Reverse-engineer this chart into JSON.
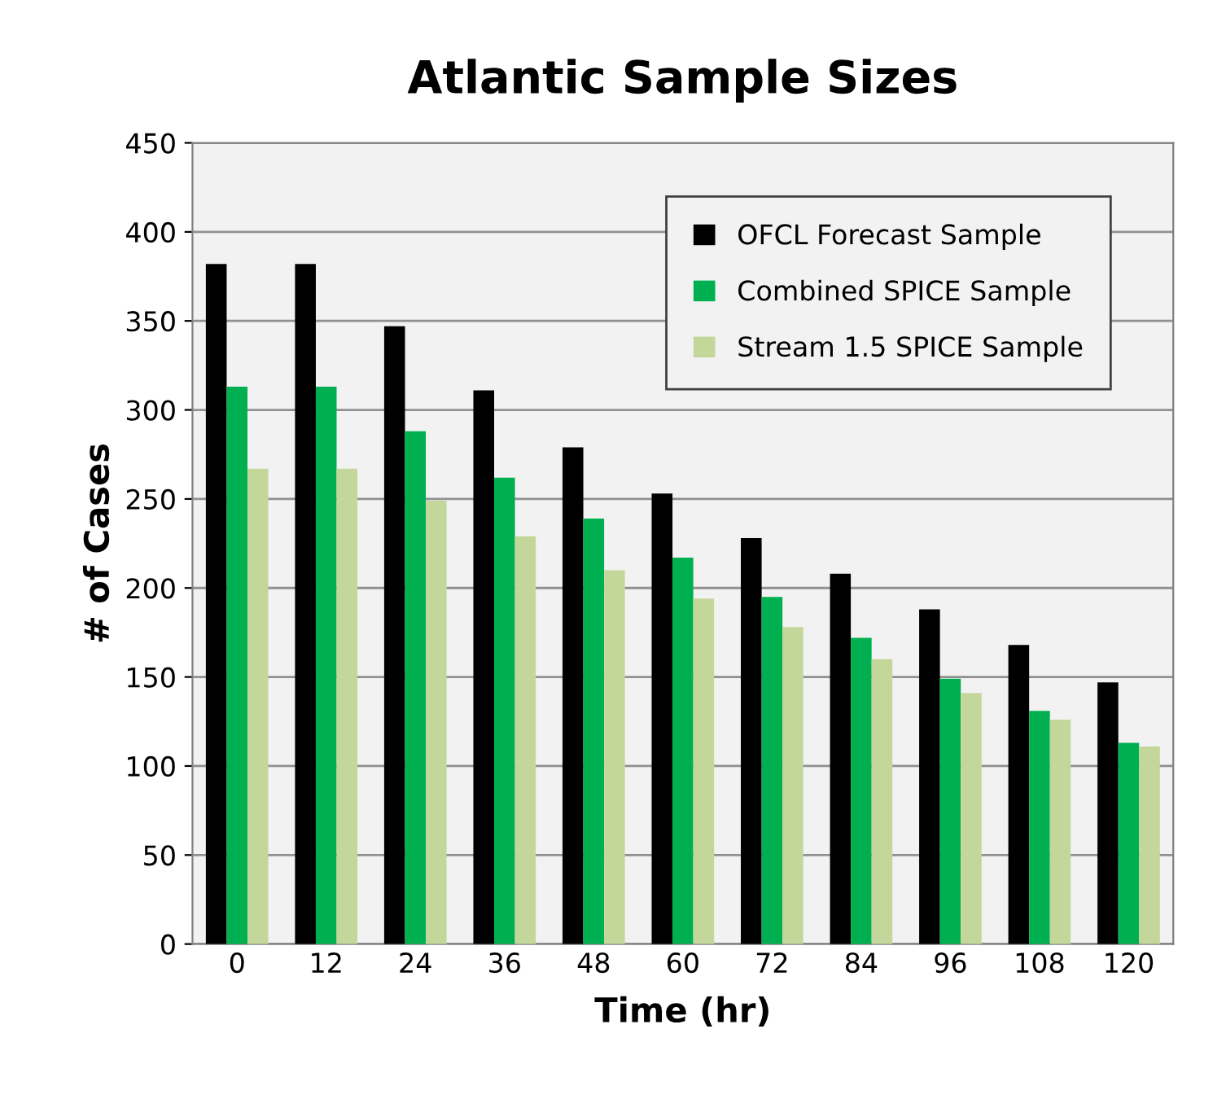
{
  "chart_data": {
    "type": "bar",
    "title": "Atlantic Sample Sizes",
    "xlabel": "Time (hr)",
    "ylabel": "# of Cases",
    "categories": [
      "0",
      "12",
      "24",
      "36",
      "48",
      "60",
      "72",
      "84",
      "96",
      "108",
      "120"
    ],
    "series": [
      {
        "name": "OFCL Forecast Sample",
        "color": "#000000",
        "values": [
          382,
          382,
          347,
          311,
          279,
          253,
          228,
          208,
          188,
          168,
          147
        ]
      },
      {
        "name": "Combined SPICE Sample",
        "color": "#00b050",
        "values": [
          313,
          313,
          288,
          262,
          239,
          217,
          195,
          172,
          149,
          131,
          113
        ]
      },
      {
        "name": "Stream 1.5 SPICE Sample",
        "color": "#c4d79b",
        "values": [
          267,
          267,
          249,
          229,
          210,
          194,
          178,
          160,
          141,
          126,
          111
        ]
      }
    ],
    "ylim": [
      0,
      450
    ],
    "yticks": [
      0,
      50,
      100,
      150,
      200,
      250,
      300,
      350,
      400,
      450
    ],
    "grid": "y",
    "legend": "top right"
  }
}
